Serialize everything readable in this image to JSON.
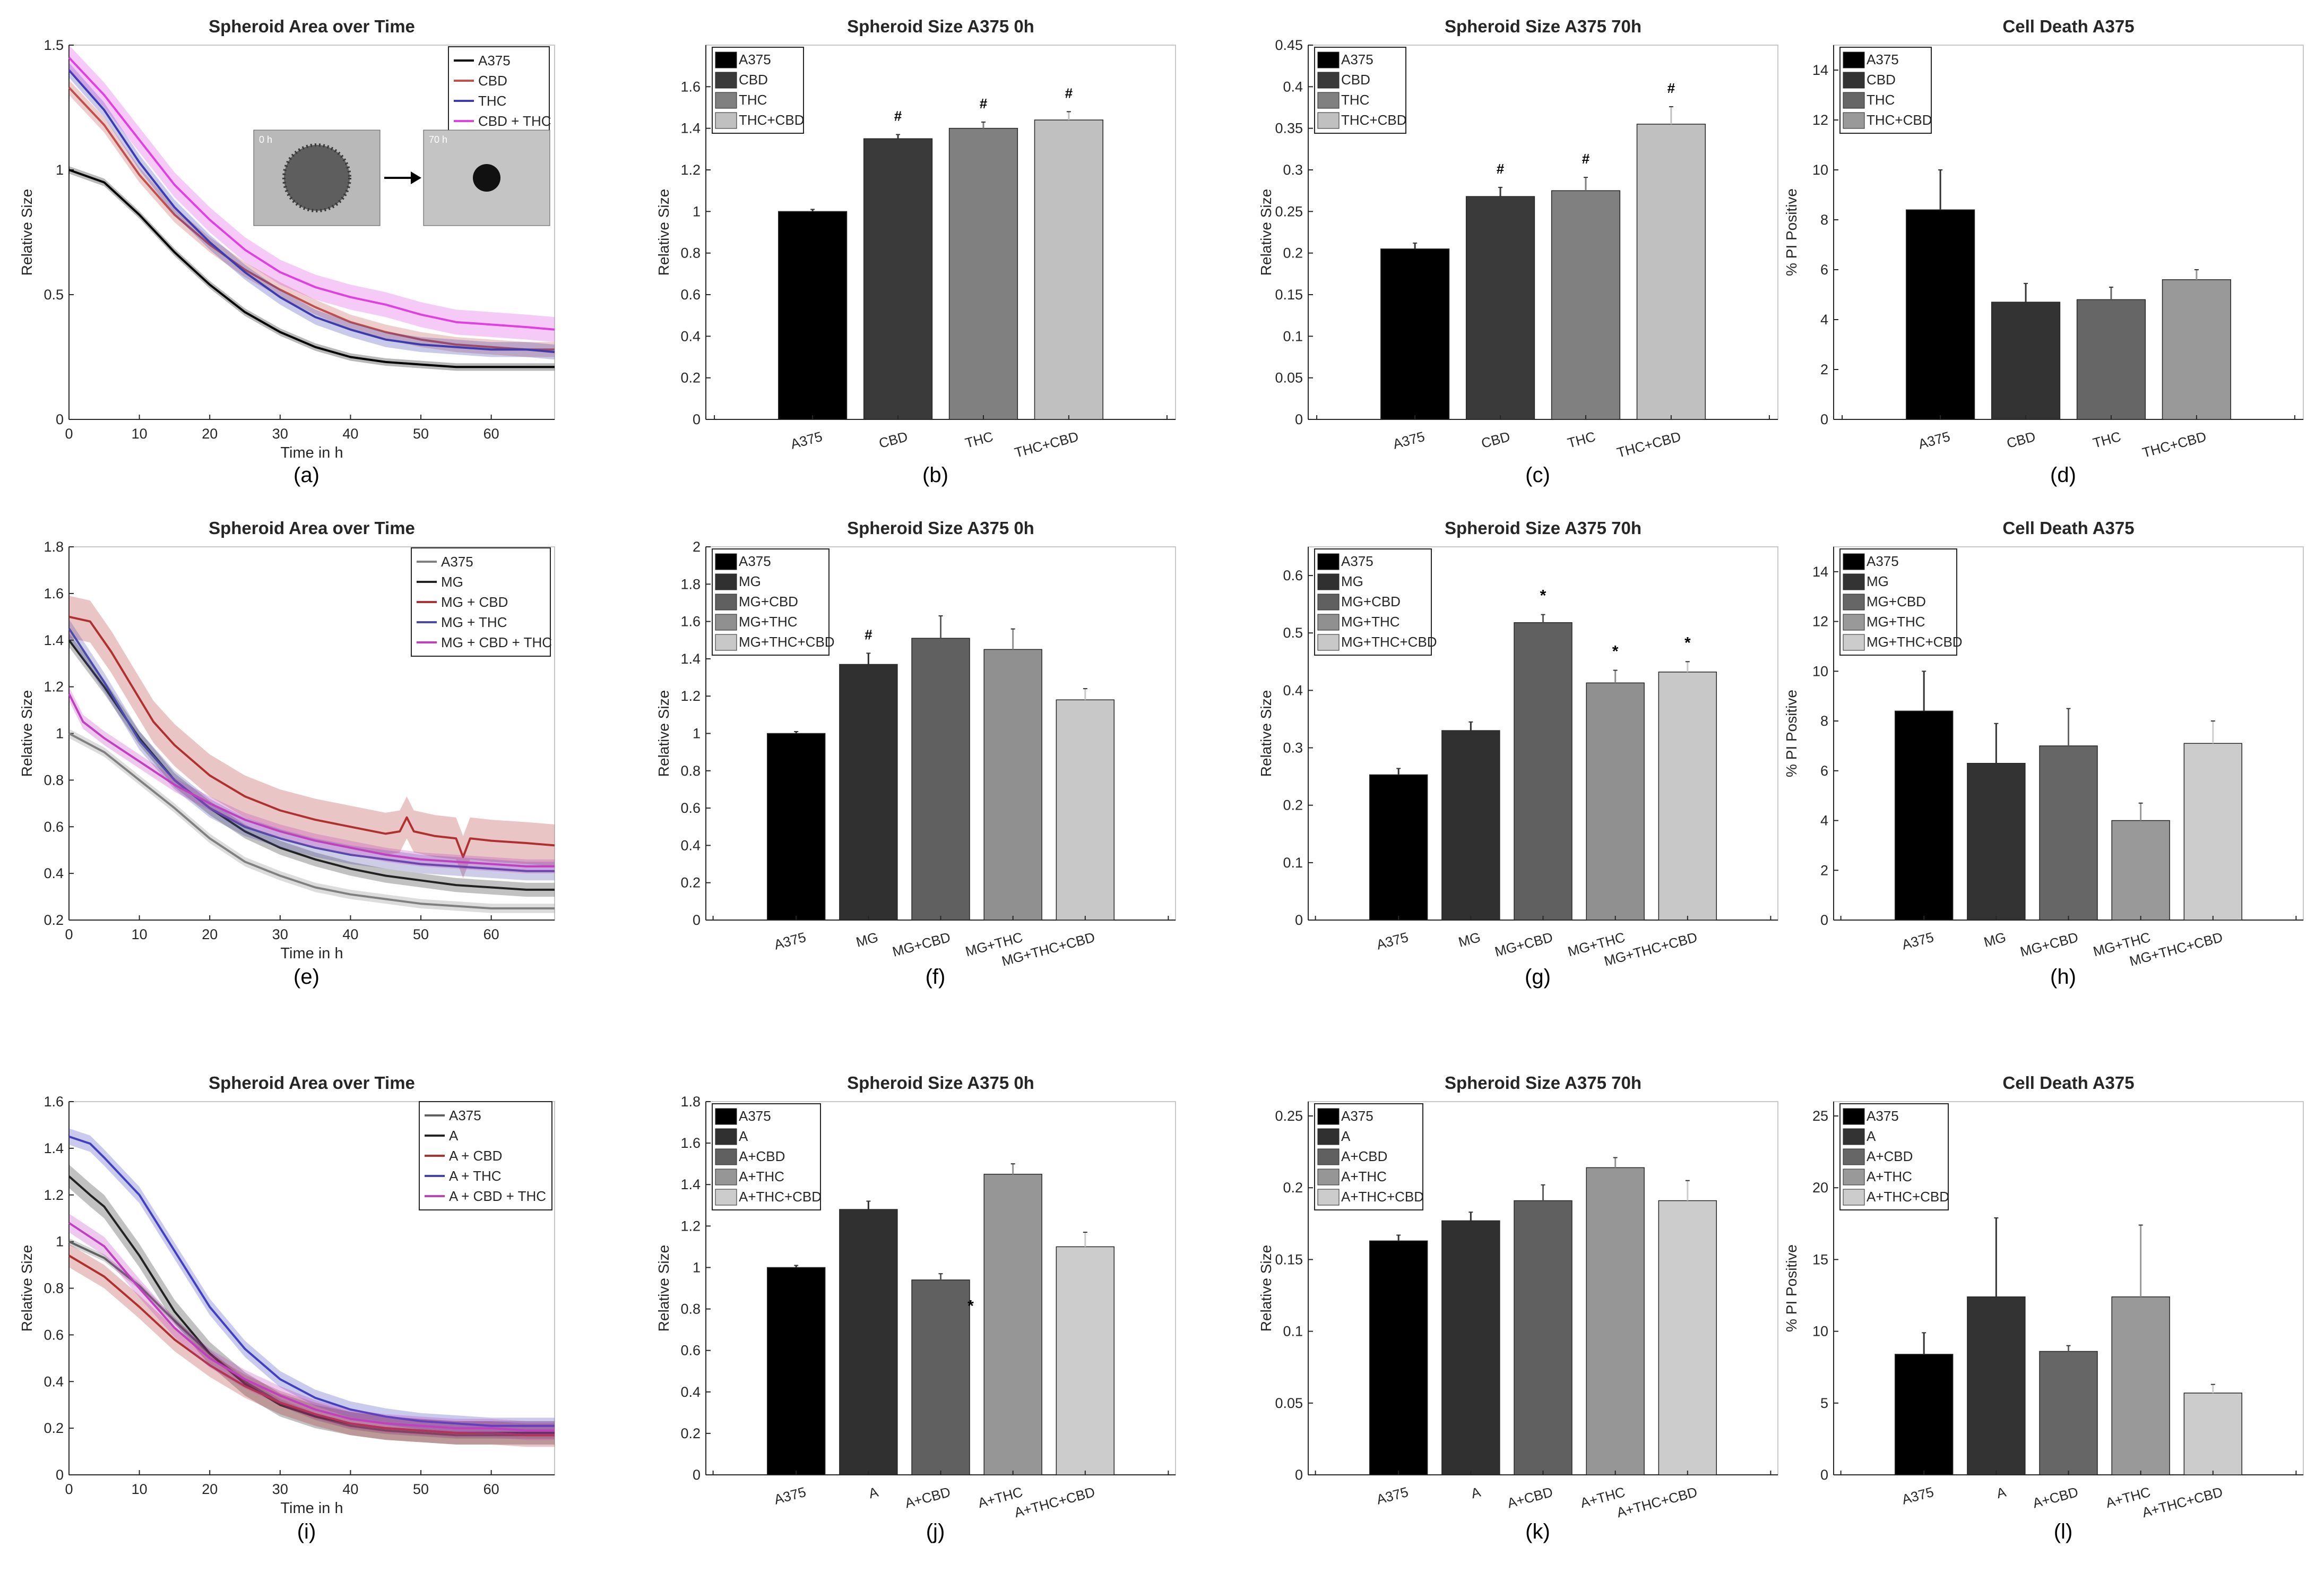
{
  "chart_data": [
    {
      "panel": "(a)",
      "type": "line",
      "title": "Spheroid Area over Time",
      "xlabel": "Time in h",
      "ylabel": "Relative Size",
      "xlim": [
        0,
        69
      ],
      "ylim": [
        0,
        1.5
      ],
      "xticks": [
        "0",
        "10",
        "20",
        "30",
        "40",
        "50",
        "60"
      ],
      "yticks": [
        "0",
        "0.5",
        "1",
        "1.5"
      ],
      "series": [
        {
          "name": "A375",
          "color": "#000000",
          "band": 0.015,
          "x": [
            0,
            5,
            10,
            15,
            20,
            25,
            30,
            35,
            40,
            45,
            50,
            55,
            60,
            65,
            69
          ],
          "y": [
            1.0,
            0.95,
            0.82,
            0.67,
            0.54,
            0.43,
            0.35,
            0.29,
            0.25,
            0.23,
            0.22,
            0.21,
            0.21,
            0.21,
            0.21
          ]
        },
        {
          "name": "CBD",
          "color": "#c0504d",
          "band": 0.03,
          "x": [
            0,
            5,
            10,
            15,
            20,
            25,
            30,
            35,
            40,
            45,
            50,
            55,
            60,
            65,
            69
          ],
          "y": [
            1.33,
            1.18,
            0.98,
            0.82,
            0.7,
            0.6,
            0.52,
            0.45,
            0.39,
            0.35,
            0.32,
            0.3,
            0.29,
            0.28,
            0.28
          ]
        },
        {
          "name": "THC",
          "color": "#3c3cb0",
          "band": 0.03,
          "x": [
            0,
            5,
            10,
            15,
            20,
            25,
            30,
            35,
            40,
            45,
            50,
            55,
            60,
            65,
            69
          ],
          "y": [
            1.4,
            1.24,
            1.03,
            0.85,
            0.71,
            0.59,
            0.49,
            0.41,
            0.36,
            0.32,
            0.3,
            0.29,
            0.28,
            0.28,
            0.27
          ]
        },
        {
          "name": "CBD + THC",
          "color": "#e040e0",
          "band": 0.05,
          "x": [
            0,
            5,
            10,
            15,
            20,
            25,
            30,
            35,
            40,
            45,
            50,
            55,
            60,
            65,
            69
          ],
          "y": [
            1.45,
            1.3,
            1.12,
            0.94,
            0.8,
            0.68,
            0.59,
            0.53,
            0.49,
            0.46,
            0.42,
            0.39,
            0.38,
            0.37,
            0.36
          ]
        }
      ],
      "inset": {
        "left_label": "0 h",
        "right_label": "70 h"
      }
    },
    {
      "panel": "(b)",
      "type": "bar",
      "title": "Spheroid Size A375 0h",
      "ylabel": "Relative Size",
      "ylim": [
        0,
        1.8
      ],
      "yticks": [
        "0",
        "0.2",
        "0.4",
        "0.6",
        "0.8",
        "1",
        "1.2",
        "1.4",
        "1.6"
      ],
      "categories": [
        "A375",
        "CBD",
        "THC",
        "THC+CBD"
      ],
      "values": [
        1.0,
        1.35,
        1.4,
        1.44
      ],
      "errors": [
        0.01,
        0.02,
        0.03,
        0.04
      ],
      "colors": [
        "#000000",
        "#3a3a3a",
        "#808080",
        "#c0c0c0"
      ],
      "markers": [
        "",
        "#",
        "#",
        "#"
      ]
    },
    {
      "panel": "(c)",
      "type": "bar",
      "title": "Spheroid Size A375 70h",
      "ylabel": "Relative Size",
      "ylim": [
        0,
        0.45
      ],
      "yticks": [
        "0",
        "0.05",
        "0.1",
        "0.15",
        "0.2",
        "0.25",
        "0.3",
        "0.35",
        "0.4",
        "0.45"
      ],
      "categories": [
        "A375",
        "CBD",
        "THC",
        "THC+CBD"
      ],
      "values": [
        0.205,
        0.268,
        0.275,
        0.355
      ],
      "errors": [
        0.007,
        0.011,
        0.016,
        0.021
      ],
      "colors": [
        "#000000",
        "#3a3a3a",
        "#808080",
        "#c0c0c0"
      ],
      "markers": [
        "",
        "#",
        "#",
        "#"
      ]
    },
    {
      "panel": "(d)",
      "type": "bar",
      "title": "Cell Death A375",
      "ylabel": "% PI Positive",
      "ylim": [
        0,
        15
      ],
      "yticks": [
        "0",
        "2",
        "4",
        "6",
        "8",
        "10",
        "12",
        "14"
      ],
      "categories": [
        "A375",
        "CBD",
        "THC",
        "THC+CBD"
      ],
      "values": [
        8.4,
        4.7,
        4.8,
        5.6
      ],
      "errors": [
        1.6,
        0.75,
        0.5,
        0.4
      ],
      "colors": [
        "#000000",
        "#333333",
        "#666666",
        "#999999"
      ],
      "markers": [
        "",
        "",
        "",
        ""
      ]
    },
    {
      "panel": "(e)",
      "type": "line",
      "title": "Spheroid Area over Time",
      "xlabel": "Time in h",
      "ylabel": "Relative Size",
      "xlim": [
        0,
        69
      ],
      "ylim": [
        0.2,
        1.8
      ],
      "xticks": [
        "0",
        "10",
        "20",
        "30",
        "40",
        "50",
        "60"
      ],
      "yticks": [
        "0.2",
        "0.4",
        "0.6",
        "0.8",
        "1",
        "1.2",
        "1.4",
        "1.6",
        "1.8"
      ],
      "series": [
        {
          "name": "A375",
          "color": "#808080",
          "band": 0.02,
          "x": [
            0,
            5,
            10,
            15,
            20,
            25,
            30,
            35,
            40,
            45,
            50,
            55,
            60,
            65,
            69
          ],
          "y": [
            1.0,
            0.92,
            0.8,
            0.68,
            0.55,
            0.45,
            0.39,
            0.34,
            0.31,
            0.29,
            0.27,
            0.26,
            0.25,
            0.25,
            0.25
          ]
        },
        {
          "name": "MG",
          "color": "#222222",
          "band": 0.03,
          "x": [
            0,
            5,
            10,
            15,
            20,
            25,
            30,
            35,
            40,
            45,
            50,
            55,
            60,
            65,
            69
          ],
          "y": [
            1.4,
            1.2,
            0.98,
            0.8,
            0.68,
            0.58,
            0.51,
            0.46,
            0.42,
            0.39,
            0.37,
            0.35,
            0.34,
            0.33,
            0.33
          ]
        },
        {
          "name": "MG + CBD",
          "color": "#b03030",
          "band": 0.09,
          "x": [
            0,
            3,
            6,
            9,
            12,
            15,
            20,
            25,
            30,
            35,
            40,
            45,
            47,
            48,
            49,
            52,
            55,
            56,
            57,
            60,
            65,
            69
          ],
          "y": [
            1.5,
            1.48,
            1.35,
            1.2,
            1.05,
            0.95,
            0.82,
            0.73,
            0.67,
            0.63,
            0.6,
            0.57,
            0.58,
            0.64,
            0.58,
            0.56,
            0.55,
            0.47,
            0.55,
            0.54,
            0.53,
            0.52
          ]
        },
        {
          "name": "MG + THC",
          "color": "#4a4aa8",
          "band": 0.04,
          "x": [
            0,
            5,
            10,
            15,
            20,
            25,
            30,
            35,
            40,
            45,
            50,
            55,
            60,
            65,
            69
          ],
          "y": [
            1.45,
            1.22,
            0.97,
            0.8,
            0.68,
            0.6,
            0.55,
            0.51,
            0.48,
            0.46,
            0.44,
            0.43,
            0.42,
            0.41,
            0.41
          ]
        },
        {
          "name": "MG + CBD + THC",
          "color": "#c040c0",
          "band": 0.03,
          "x": [
            0,
            2,
            5,
            10,
            15,
            20,
            25,
            30,
            35,
            40,
            45,
            50,
            55,
            60,
            65,
            69
          ],
          "y": [
            1.17,
            1.05,
            0.98,
            0.88,
            0.78,
            0.7,
            0.63,
            0.58,
            0.54,
            0.51,
            0.48,
            0.46,
            0.45,
            0.44,
            0.43,
            0.43
          ]
        }
      ]
    },
    {
      "panel": "(f)",
      "type": "bar",
      "title": "Spheroid Size A375 0h",
      "ylabel": "Relative Size",
      "ylim": [
        0,
        2.0
      ],
      "yticks": [
        "0",
        "0.2",
        "0.4",
        "0.6",
        "0.8",
        "1",
        "1.2",
        "1.4",
        "1.6",
        "1.8",
        "2"
      ],
      "categories": [
        "A375",
        "MG",
        "MG+CBD",
        "MG+THC",
        "MG+THC+CBD"
      ],
      "values": [
        1.0,
        1.37,
        1.51,
        1.45,
        1.18
      ],
      "errors": [
        0.01,
        0.06,
        0.12,
        0.11,
        0.06
      ],
      "colors": [
        "#000000",
        "#303030",
        "#606060",
        "#909090",
        "#c8c8c8"
      ],
      "markers": [
        "",
        "#",
        "",
        "",
        ""
      ]
    },
    {
      "panel": "(g)",
      "type": "bar",
      "title": "Spheroid Size A375 70h",
      "ylabel": "Relative Size",
      "ylim": [
        0,
        0.65
      ],
      "yticks": [
        "0",
        "0.1",
        "0.2",
        "0.3",
        "0.4",
        "0.5",
        "0.6"
      ],
      "categories": [
        "A375",
        "MG",
        "MG+CBD",
        "MG+THC",
        "MG+THC+CBD"
      ],
      "values": [
        0.253,
        0.33,
        0.518,
        0.413,
        0.432
      ],
      "errors": [
        0.011,
        0.015,
        0.014,
        0.022,
        0.018
      ],
      "colors": [
        "#000000",
        "#303030",
        "#606060",
        "#909090",
        "#c8c8c8"
      ],
      "markers": [
        "",
        "",
        "*",
        "*",
        "*"
      ]
    },
    {
      "panel": "(h)",
      "type": "bar",
      "title": "Cell Death A375",
      "ylabel": "% PI Positive",
      "ylim": [
        0,
        15
      ],
      "yticks": [
        "0",
        "2",
        "4",
        "6",
        "8",
        "10",
        "12",
        "14"
      ],
      "categories": [
        "A375",
        "MG",
        "MG+CBD",
        "MG+THC",
        "MG+THC+CBD"
      ],
      "values": [
        8.4,
        6.3,
        7.0,
        4.0,
        7.1
      ],
      "errors": [
        1.6,
        1.6,
        1.5,
        0.7,
        0.9
      ],
      "colors": [
        "#000000",
        "#333333",
        "#666666",
        "#999999",
        "#cccccc"
      ],
      "markers": [
        "",
        "",
        "",
        "",
        ""
      ]
    },
    {
      "panel": "(i)",
      "type": "line",
      "title": "Spheroid Area over Time",
      "xlabel": "Time in h",
      "ylabel": "Relative Size",
      "xlim": [
        0,
        69
      ],
      "ylim": [
        0,
        1.6
      ],
      "xticks": [
        "0",
        "10",
        "20",
        "30",
        "40",
        "50",
        "60"
      ],
      "yticks": [
        "0",
        "0.2",
        "0.4",
        "0.6",
        "0.8",
        "1",
        "1.2",
        "1.4",
        "1.6"
      ],
      "series": [
        {
          "name": "A375",
          "color": "#606060",
          "band": 0.015,
          "x": [
            0,
            5,
            10,
            15,
            20,
            25,
            30,
            35,
            40,
            45,
            50,
            55,
            60,
            65,
            69
          ],
          "y": [
            1.0,
            0.93,
            0.81,
            0.66,
            0.52,
            0.4,
            0.31,
            0.25,
            0.21,
            0.19,
            0.18,
            0.17,
            0.17,
            0.17,
            0.17
          ]
        },
        {
          "name": "A",
          "color": "#222222",
          "band": 0.05,
          "x": [
            0,
            3,
            5,
            10,
            15,
            20,
            25,
            30,
            35,
            40,
            45,
            50,
            55,
            60,
            65,
            69
          ],
          "y": [
            1.28,
            1.2,
            1.15,
            0.94,
            0.7,
            0.52,
            0.39,
            0.3,
            0.25,
            0.22,
            0.2,
            0.19,
            0.18,
            0.18,
            0.18,
            0.18
          ]
        },
        {
          "name": "A + CBD",
          "color": "#b03030",
          "band": 0.05,
          "x": [
            0,
            5,
            10,
            15,
            20,
            25,
            30,
            35,
            40,
            45,
            50,
            55,
            60,
            65,
            69
          ],
          "y": [
            0.94,
            0.85,
            0.72,
            0.58,
            0.47,
            0.38,
            0.31,
            0.26,
            0.22,
            0.2,
            0.19,
            0.18,
            0.18,
            0.17,
            0.17
          ]
        },
        {
          "name": "A + THC",
          "color": "#4040c0",
          "band": 0.035,
          "x": [
            0,
            3,
            5,
            10,
            15,
            20,
            25,
            30,
            35,
            40,
            45,
            50,
            55,
            60,
            65,
            69
          ],
          "y": [
            1.45,
            1.42,
            1.36,
            1.2,
            0.96,
            0.72,
            0.54,
            0.41,
            0.33,
            0.28,
            0.25,
            0.23,
            0.22,
            0.21,
            0.21,
            0.21
          ]
        },
        {
          "name": "A + CBD + THC",
          "color": "#c040c0",
          "band": 0.04,
          "x": [
            0,
            5,
            10,
            15,
            20,
            25,
            30,
            35,
            40,
            45,
            50,
            55,
            60,
            65,
            69
          ],
          "y": [
            1.08,
            0.98,
            0.8,
            0.63,
            0.5,
            0.41,
            0.34,
            0.28,
            0.24,
            0.22,
            0.21,
            0.2,
            0.2,
            0.19,
            0.19
          ]
        }
      ]
    },
    {
      "panel": "(j)",
      "type": "bar",
      "title": "Spheroid Size A375 0h",
      "ylabel": "Relative Size",
      "ylim": [
        0,
        1.8
      ],
      "yticks": [
        "0",
        "0.2",
        "0.4",
        "0.6",
        "0.8",
        "1",
        "1.2",
        "1.4",
        "1.6",
        "1.8"
      ],
      "categories": [
        "A375",
        "A",
        "A+CBD",
        "A+THC",
        "A+THC+CBD"
      ],
      "values": [
        1.0,
        1.28,
        0.94,
        1.45,
        1.1
      ],
      "errors": [
        0.01,
        0.04,
        0.03,
        0.05,
        0.07
      ],
      "colors": [
        "#000000",
        "#303030",
        "#606060",
        "#969696",
        "#cccccc"
      ],
      "markers": [
        "",
        "",
        "*",
        "",
        ""
      ]
    },
    {
      "panel": "(k)",
      "type": "bar",
      "title": "Spheroid Size A375 70h",
      "ylabel": "Relative Size",
      "ylim": [
        0,
        0.26
      ],
      "yticks": [
        "0",
        "0.05",
        "0.1",
        "0.15",
        "0.2",
        "0.25"
      ],
      "categories": [
        "A375",
        "A",
        "A+CBD",
        "A+THC",
        "A+THC+CBD"
      ],
      "values": [
        0.163,
        0.177,
        0.191,
        0.214,
        0.191
      ],
      "errors": [
        0.004,
        0.006,
        0.011,
        0.007,
        0.014
      ],
      "colors": [
        "#000000",
        "#303030",
        "#606060",
        "#969696",
        "#cccccc"
      ],
      "markers": [
        "",
        "",
        "",
        "",
        ""
      ]
    },
    {
      "panel": "(l)",
      "type": "bar",
      "title": "Cell Death A375",
      "ylabel": "% PI Positive",
      "ylim": [
        0,
        26
      ],
      "yticks": [
        "0",
        "5",
        "10",
        "15",
        "20",
        "25"
      ],
      "categories": [
        "A375",
        "A",
        "A+CBD",
        "A+THC",
        "A+THC+CBD"
      ],
      "values": [
        8.4,
        12.4,
        8.6,
        12.4,
        5.7
      ],
      "errors": [
        1.5,
        5.5,
        0.4,
        5.0,
        0.6
      ],
      "colors": [
        "#000000",
        "#333333",
        "#666666",
        "#999999",
        "#cccccc"
      ],
      "markers": [
        "",
        "",
        "",
        "",
        ""
      ]
    }
  ]
}
